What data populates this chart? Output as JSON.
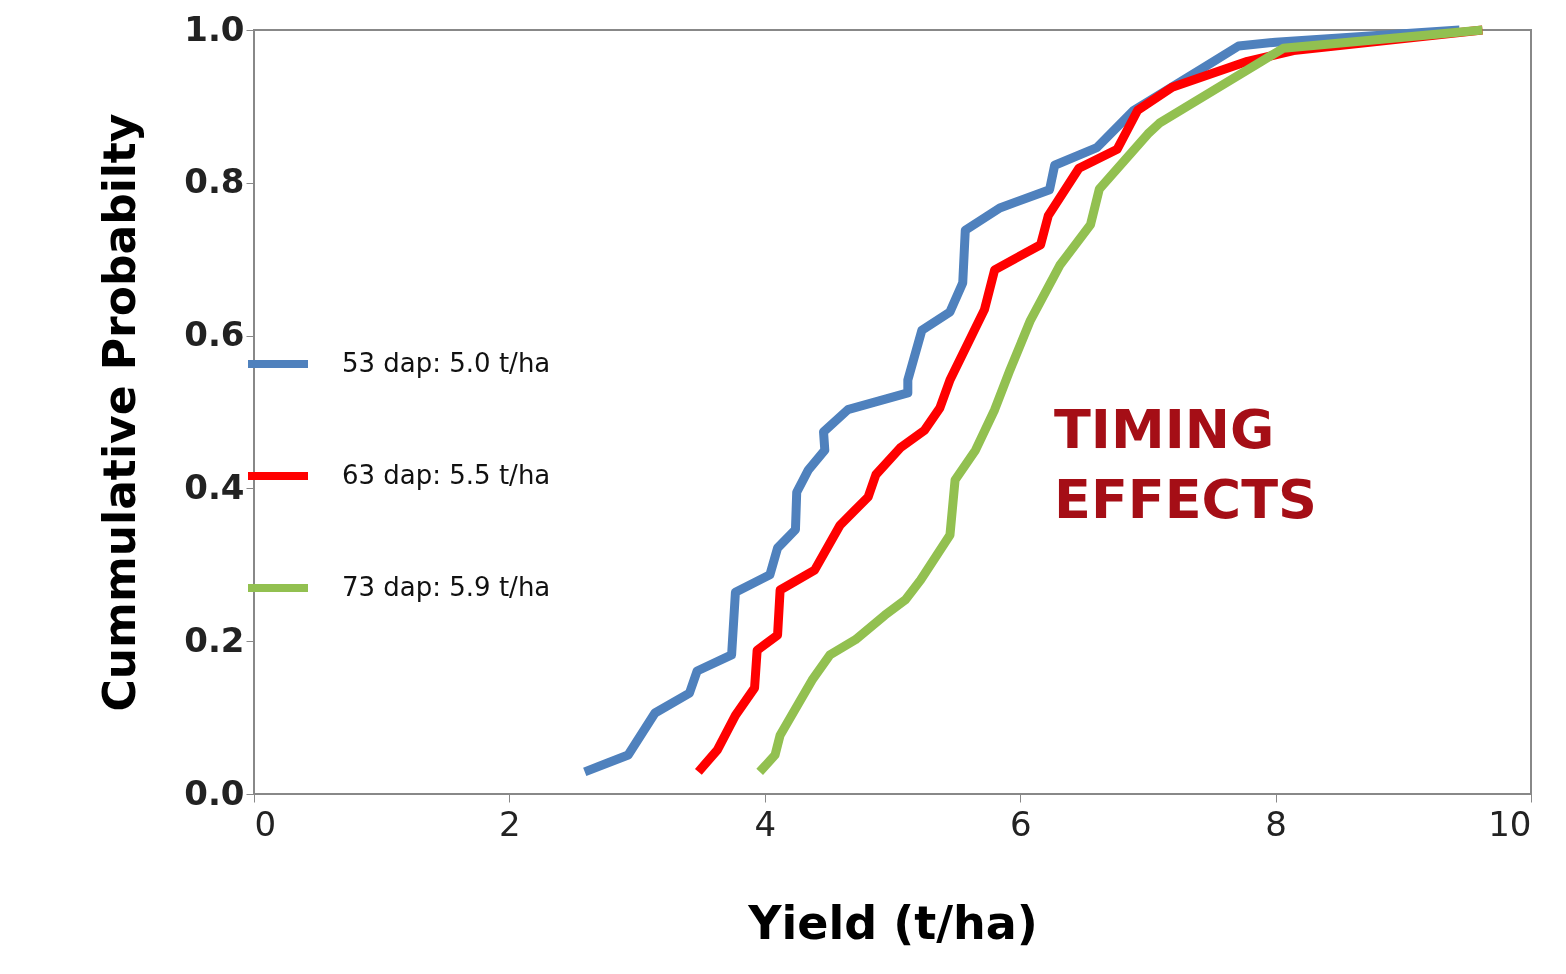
{
  "chart_data": {
    "type": "line",
    "xlabel": "Yield (t/ha)",
    "ylabel": "Cummulative Probabilty",
    "xlim": [
      0,
      10
    ],
    "xticks": [
      0,
      2,
      4,
      6,
      8,
      10
    ],
    "ylim": [
      0,
      1
    ],
    "yticks": [
      {
        "value": 0,
        "label": "0.0"
      },
      {
        "value": 0.2,
        "label": "0.2"
      },
      {
        "value": 0.4,
        "label": "0.4"
      },
      {
        "value": 0.6,
        "label": "0.6"
      },
      {
        "value": 0.8,
        "label": "0.8"
      },
      {
        "value": 1,
        "label": "1.0"
      }
    ],
    "grid": false,
    "legend": "left",
    "line_style": "solid",
    "marker": "none",
    "annotations": [
      "TIMING\nEFFECTS"
    ],
    "series": [
      {
        "name": "53 dap: 5.0 t/ha",
        "color": "#4f81bd",
        "x": [
          2.59,
          2.93,
          3.14,
          3.41,
          3.47,
          3.74,
          3.77,
          4.04,
          4.1,
          4.24,
          4.25,
          4.34,
          4.47,
          4.46,
          4.65,
          5.12,
          5.12,
          5.23,
          5.45,
          5.55,
          5.57,
          5.84,
          6.23,
          6.27,
          6.6,
          6.89,
          7.43,
          7.71,
          8.0,
          9.44
        ],
        "values": [
          0.029,
          0.051,
          0.106,
          0.132,
          0.161,
          0.182,
          0.264,
          0.287,
          0.322,
          0.346,
          0.395,
          0.424,
          0.45,
          0.474,
          0.503,
          0.525,
          0.542,
          0.607,
          0.631,
          0.669,
          0.738,
          0.767,
          0.791,
          0.823,
          0.846,
          0.895,
          0.95,
          0.979,
          0.984,
          1.0
        ]
      },
      {
        "name": "63 dap: 5.5 t/ha",
        "color": "#ff0000",
        "x": [
          3.48,
          3.63,
          3.77,
          3.92,
          3.94,
          4.1,
          4.12,
          4.39,
          4.59,
          4.81,
          4.87,
          5.06,
          5.25,
          5.37,
          5.45,
          5.72,
          5.8,
          6.16,
          6.22,
          6.46,
          6.76,
          6.92,
          7.19,
          7.78,
          8.14,
          9.62
        ],
        "values": [
          0.029,
          0.058,
          0.103,
          0.139,
          0.188,
          0.208,
          0.267,
          0.293,
          0.352,
          0.389,
          0.418,
          0.453,
          0.476,
          0.505,
          0.542,
          0.634,
          0.686,
          0.719,
          0.757,
          0.819,
          0.844,
          0.895,
          0.925,
          0.959,
          0.973,
          1.0
        ]
      },
      {
        "name": "73 dap: 5.9 t/ha",
        "color": "#92c050",
        "x": [
          3.96,
          4.08,
          4.12,
          4.28,
          4.37,
          4.51,
          4.71,
          4.94,
          5.1,
          5.22,
          5.45,
          5.49,
          5.65,
          5.8,
          5.92,
          6.08,
          6.31,
          6.55,
          6.62,
          7.0,
          7.09,
          7.89,
          8.06,
          9.62
        ],
        "values": [
          0.029,
          0.051,
          0.077,
          0.123,
          0.149,
          0.182,
          0.202,
          0.234,
          0.254,
          0.28,
          0.339,
          0.411,
          0.45,
          0.503,
          0.555,
          0.62,
          0.692,
          0.745,
          0.792,
          0.864,
          0.878,
          0.959,
          0.976,
          1.0
        ]
      }
    ]
  }
}
